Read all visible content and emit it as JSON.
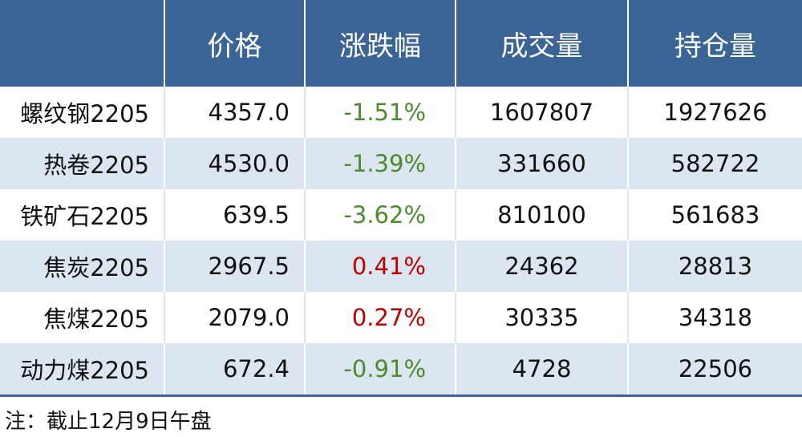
{
  "header": {
    "columns": [
      "",
      "价格",
      "涨跌幅",
      "成交量",
      "持仓量"
    ]
  },
  "table": {
    "rows": [
      [
        "螺纹钢2205",
        "4357.0",
        "-1.51%",
        "1607807",
        "1927626"
      ],
      [
        "热卷2205",
        "4530.0",
        "-1.39%",
        "331660",
        "582722"
      ],
      [
        "铁矿石2205",
        "639.5",
        "-3.62%",
        "810100",
        "561683"
      ],
      [
        "焦炭2205",
        "2967.5",
        "0.41%",
        "24362",
        "28813"
      ],
      [
        "焦煤2205",
        "2079.0",
        "0.27%",
        "30335",
        "34318"
      ],
      [
        "动力煤2205",
        "672.4",
        "-0.91%",
        "4728",
        "22506"
      ]
    ]
  },
  "note": "注：截止12月9日午盘"
}
